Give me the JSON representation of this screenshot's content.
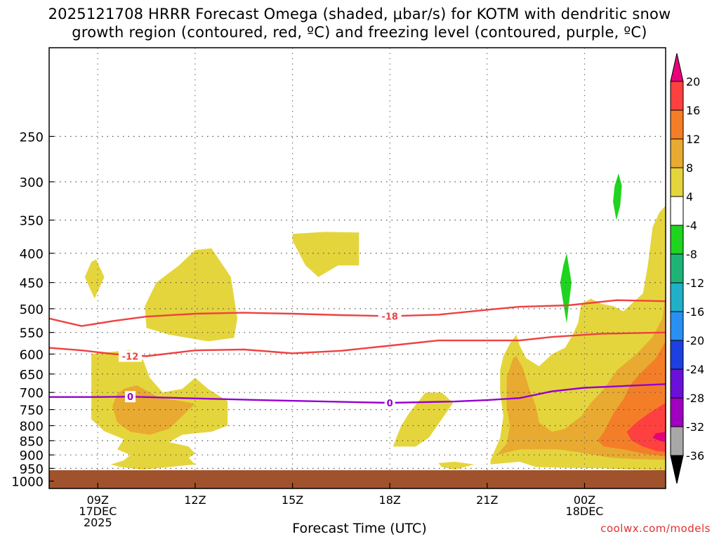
{
  "chart_data": {
    "type": "heatmap",
    "title_line1": "2025121708 HRRR Forecast Omega (shaded, μbar/s) for KOTM with dendritic snow",
    "title_line2": "growth region (contoured, red, ºC) and freezing level (contoured, purple, ºC)",
    "xlabel": "Forecast Time (UTC)",
    "ylabel": "",
    "credit": "coolwx.com/models",
    "x_range_hours": [
      7.5,
      26.5
    ],
    "y_range_hpa": [
      175,
      1030
    ],
    "x_ticks": [
      {
        "hour": 9,
        "lines": [
          "09Z",
          "17DEC",
          "2025"
        ]
      },
      {
        "hour": 12,
        "lines": [
          "12Z"
        ]
      },
      {
        "hour": 15,
        "lines": [
          "15Z"
        ]
      },
      {
        "hour": 18,
        "lines": [
          "18Z"
        ]
      },
      {
        "hour": 21,
        "lines": [
          "21Z"
        ]
      },
      {
        "hour": 24,
        "lines": [
          "00Z",
          "18DEC"
        ]
      }
    ],
    "y_ticks": [
      250,
      300,
      350,
      400,
      450,
      500,
      550,
      600,
      650,
      700,
      750,
      800,
      850,
      900,
      950,
      1000
    ],
    "colorbar": {
      "labels": [
        "20",
        "16",
        "12",
        "8",
        "4",
        "-4",
        "-8",
        "-12",
        "-16",
        "-20",
        "-24",
        "-28",
        "-32",
        "-36"
      ],
      "colors": [
        "#e8007a",
        "#ff4040",
        "#f47e28",
        "#e8aa30",
        "#e5d53c",
        "#ffffff",
        "#1ed41e",
        "#1eb478",
        "#20b0c8",
        "#2890f0",
        "#1e40e0",
        "#6a10d8",
        "#a000c0",
        "#a8a8a8"
      ]
    },
    "colors": {
      "yellow": "#e5d53c",
      "gold": "#e8aa30",
      "orange": "#f47e28",
      "red": "#ff4040",
      "magenta": "#e8007a",
      "green": "#1ed41e",
      "ground": "#a0522d",
      "dgz_line": "#f04040",
      "freezing_line": "#9400d0"
    },
    "contours": [
      {
        "name": "dgz-minus18",
        "label": "-18",
        "label_at": [
          18.0,
          515
        ],
        "color_key": "dgz_line",
        "points": [
          [
            7.5,
            520
          ],
          [
            8.5,
            536
          ],
          [
            9.5,
            525
          ],
          [
            10.5,
            516
          ],
          [
            12,
            510
          ],
          [
            13.5,
            508
          ],
          [
            15,
            510
          ],
          [
            16.5,
            513
          ],
          [
            18,
            515
          ],
          [
            19.5,
            512
          ],
          [
            21,
            502
          ],
          [
            22,
            496
          ],
          [
            23.5,
            493
          ],
          [
            25,
            483
          ],
          [
            26.5,
            485
          ]
        ]
      },
      {
        "name": "dgz-minus12",
        "label": "-12",
        "label_at": [
          10.0,
          605
        ],
        "color_key": "dgz_line",
        "points": [
          [
            7.5,
            585
          ],
          [
            8.5,
            591
          ],
          [
            9.5,
            600
          ],
          [
            10.5,
            605
          ],
          [
            12,
            591
          ],
          [
            13.5,
            589
          ],
          [
            15,
            598
          ],
          [
            16.5,
            592
          ],
          [
            18,
            580
          ],
          [
            19.5,
            568
          ],
          [
            21,
            568
          ],
          [
            22,
            568
          ],
          [
            23,
            560
          ],
          [
            24.5,
            553
          ],
          [
            26.5,
            550
          ]
        ]
      },
      {
        "name": "freezing-level",
        "label": "0",
        "label_at": [
          18.0,
          730
        ],
        "color_key": "freezing_line",
        "points": [
          [
            7.5,
            713
          ],
          [
            9,
            713
          ],
          [
            10,
            712
          ],
          [
            12,
            717
          ],
          [
            14.5,
            723
          ],
          [
            16,
            726
          ],
          [
            18,
            730
          ],
          [
            20,
            726
          ],
          [
            21,
            722
          ],
          [
            22,
            716
          ],
          [
            23,
            697
          ],
          [
            24,
            687
          ],
          [
            25,
            683
          ],
          [
            26.5,
            677
          ]
        ]
      }
    ],
    "labels_zero_extra": [
      10.0,
      712
    ],
    "shaded_regions": [
      {
        "color_key": "yellow",
        "points": [
          [
            8.8,
            414
          ],
          [
            8.95,
            410
          ],
          [
            9.2,
            440
          ],
          [
            8.9,
            480
          ],
          [
            8.6,
            440
          ]
        ]
      },
      {
        "color_key": "yellow",
        "points": [
          [
            10.45,
            495
          ],
          [
            10.8,
            450
          ],
          [
            11.5,
            420
          ],
          [
            12.0,
            395
          ],
          [
            12.5,
            392
          ],
          [
            13.1,
            440
          ],
          [
            13.3,
            520
          ],
          [
            13.2,
            562
          ],
          [
            12.4,
            570
          ],
          [
            11.2,
            555
          ],
          [
            10.5,
            540
          ]
        ]
      },
      {
        "color_key": "yellow",
        "points": [
          [
            15.0,
            370
          ],
          [
            16.0,
            367
          ],
          [
            17.05,
            368
          ],
          [
            17.05,
            420
          ],
          [
            16.4,
            420
          ],
          [
            15.8,
            440
          ],
          [
            15.4,
            420
          ],
          [
            15.0,
            380
          ]
        ]
      },
      {
        "color_key": "yellow",
        "points": [
          [
            8.8,
            600
          ],
          [
            10.0,
            590
          ],
          [
            10.4,
            615
          ],
          [
            10.6,
            660
          ],
          [
            11.0,
            700
          ],
          [
            11.6,
            690
          ],
          [
            12.0,
            660
          ],
          [
            12.4,
            690
          ],
          [
            13.0,
            725
          ],
          [
            13.0,
            750
          ],
          [
            13.0,
            800
          ],
          [
            12.5,
            820
          ],
          [
            12.0,
            825
          ],
          [
            11.6,
            830
          ],
          [
            11.2,
            855
          ],
          [
            11.8,
            870
          ],
          [
            12.0,
            895
          ],
          [
            11.8,
            910
          ],
          [
            12.0,
            935
          ],
          [
            11.2,
            945
          ],
          [
            10.4,
            955
          ],
          [
            9.7,
            945
          ],
          [
            9.4,
            935
          ],
          [
            9.8,
            920
          ],
          [
            10.0,
            900
          ],
          [
            9.6,
            880
          ],
          [
            9.8,
            845
          ],
          [
            9.2,
            818
          ],
          [
            8.8,
            780
          ],
          [
            8.8,
            650
          ]
        ]
      },
      {
        "color_key": "gold",
        "points": [
          [
            9.8,
            690
          ],
          [
            10.2,
            680
          ],
          [
            10.6,
            700
          ],
          [
            10.9,
            715
          ],
          [
            11.6,
            725
          ],
          [
            12.0,
            733
          ],
          [
            11.8,
            750
          ],
          [
            11.6,
            770
          ],
          [
            11.2,
            810
          ],
          [
            10.6,
            830
          ],
          [
            10.0,
            820
          ],
          [
            9.6,
            790
          ],
          [
            9.45,
            740
          ],
          [
            9.6,
            705
          ]
        ]
      },
      {
        "color_key": "yellow",
        "points": [
          [
            19.1,
            700
          ],
          [
            19.6,
            700
          ],
          [
            19.95,
            730
          ],
          [
            19.6,
            780
          ],
          [
            19.2,
            840
          ],
          [
            18.8,
            870
          ],
          [
            18.1,
            870
          ],
          [
            18.2,
            840
          ],
          [
            18.35,
            800
          ],
          [
            18.6,
            760
          ]
        ]
      },
      {
        "color_key": "yellow",
        "points": [
          [
            19.5,
            930
          ],
          [
            20.0,
            925
          ],
          [
            20.6,
            935
          ],
          [
            20.0,
            955
          ],
          [
            19.6,
            945
          ]
        ]
      },
      {
        "color_key": "yellow",
        "points": [
          [
            26.5,
            330
          ],
          [
            26.3,
            340
          ],
          [
            26.1,
            360
          ],
          [
            25.95,
            420
          ],
          [
            25.8,
            470
          ],
          [
            25.2,
            505
          ],
          [
            24.9,
            495
          ],
          [
            24.5,
            490
          ],
          [
            24.2,
            480
          ],
          [
            23.9,
            490
          ],
          [
            23.8,
            530
          ],
          [
            23.6,
            560
          ],
          [
            23.4,
            585
          ],
          [
            23.0,
            600
          ],
          [
            22.6,
            630
          ],
          [
            22.2,
            610
          ],
          [
            22.0,
            580
          ],
          [
            21.9,
            555
          ],
          [
            21.7,
            575
          ],
          [
            21.5,
            605
          ],
          [
            21.4,
            640
          ],
          [
            21.4,
            700
          ],
          [
            21.5,
            770
          ],
          [
            21.4,
            840
          ],
          [
            21.1,
            920
          ],
          [
            21.1,
            935
          ],
          [
            22.0,
            925
          ],
          [
            22.5,
            945
          ],
          [
            23.5,
            948
          ],
          [
            24.5,
            950
          ],
          [
            25.5,
            955
          ],
          [
            26.5,
            958
          ]
        ]
      },
      {
        "color_key": "gold",
        "points": [
          [
            26.5,
            470
          ],
          [
            26.4,
            520
          ],
          [
            26.1,
            560
          ],
          [
            25.6,
            600
          ],
          [
            25.0,
            640
          ],
          [
            24.6,
            690
          ],
          [
            24.2,
            730
          ],
          [
            23.9,
            770
          ],
          [
            23.4,
            810
          ],
          [
            23.0,
            820
          ],
          [
            22.6,
            790
          ],
          [
            22.5,
            740
          ],
          [
            22.3,
            690
          ],
          [
            22.1,
            635
          ],
          [
            21.9,
            605
          ],
          [
            21.8,
            610
          ],
          [
            21.6,
            660
          ],
          [
            21.6,
            740
          ],
          [
            21.7,
            800
          ],
          [
            21.6,
            860
          ],
          [
            21.3,
            900
          ],
          [
            22.0,
            880
          ],
          [
            22.6,
            880
          ],
          [
            23.2,
            880
          ],
          [
            23.8,
            890
          ],
          [
            24.3,
            900
          ],
          [
            24.8,
            910
          ],
          [
            25.5,
            915
          ],
          [
            26.5,
            918
          ]
        ]
      },
      {
        "color_key": "orange",
        "points": [
          [
            26.5,
            570
          ],
          [
            26.2,
            610
          ],
          [
            25.7,
            650
          ],
          [
            25.4,
            680
          ],
          [
            25.2,
            720
          ],
          [
            24.9,
            760
          ],
          [
            24.6,
            820
          ],
          [
            24.4,
            850
          ],
          [
            24.6,
            870
          ],
          [
            25.2,
            880
          ],
          [
            25.8,
            895
          ],
          [
            26.5,
            905
          ]
        ]
      },
      {
        "color_key": "red",
        "points": [
          [
            26.5,
            730
          ],
          [
            26.0,
            760
          ],
          [
            25.6,
            790
          ],
          [
            25.3,
            820
          ],
          [
            25.45,
            850
          ],
          [
            25.8,
            870
          ],
          [
            26.2,
            885
          ],
          [
            26.5,
            890
          ]
        ]
      },
      {
        "color_key": "magenta",
        "points": [
          [
            26.5,
            820
          ],
          [
            26.2,
            825
          ],
          [
            26.1,
            840
          ],
          [
            26.3,
            850
          ],
          [
            26.5,
            855
          ]
        ]
      },
      {
        "color_key": "green",
        "points": [
          [
            23.45,
            400
          ],
          [
            23.6,
            450
          ],
          [
            23.5,
            500
          ],
          [
            23.45,
            530
          ],
          [
            23.35,
            490
          ],
          [
            23.25,
            450
          ],
          [
            23.35,
            420
          ]
        ]
      },
      {
        "color_key": "green",
        "points": [
          [
            25.05,
            290
          ],
          [
            25.15,
            305
          ],
          [
            25.1,
            330
          ],
          [
            24.98,
            350
          ],
          [
            24.88,
            325
          ],
          [
            24.93,
            305
          ]
        ]
      }
    ]
  }
}
